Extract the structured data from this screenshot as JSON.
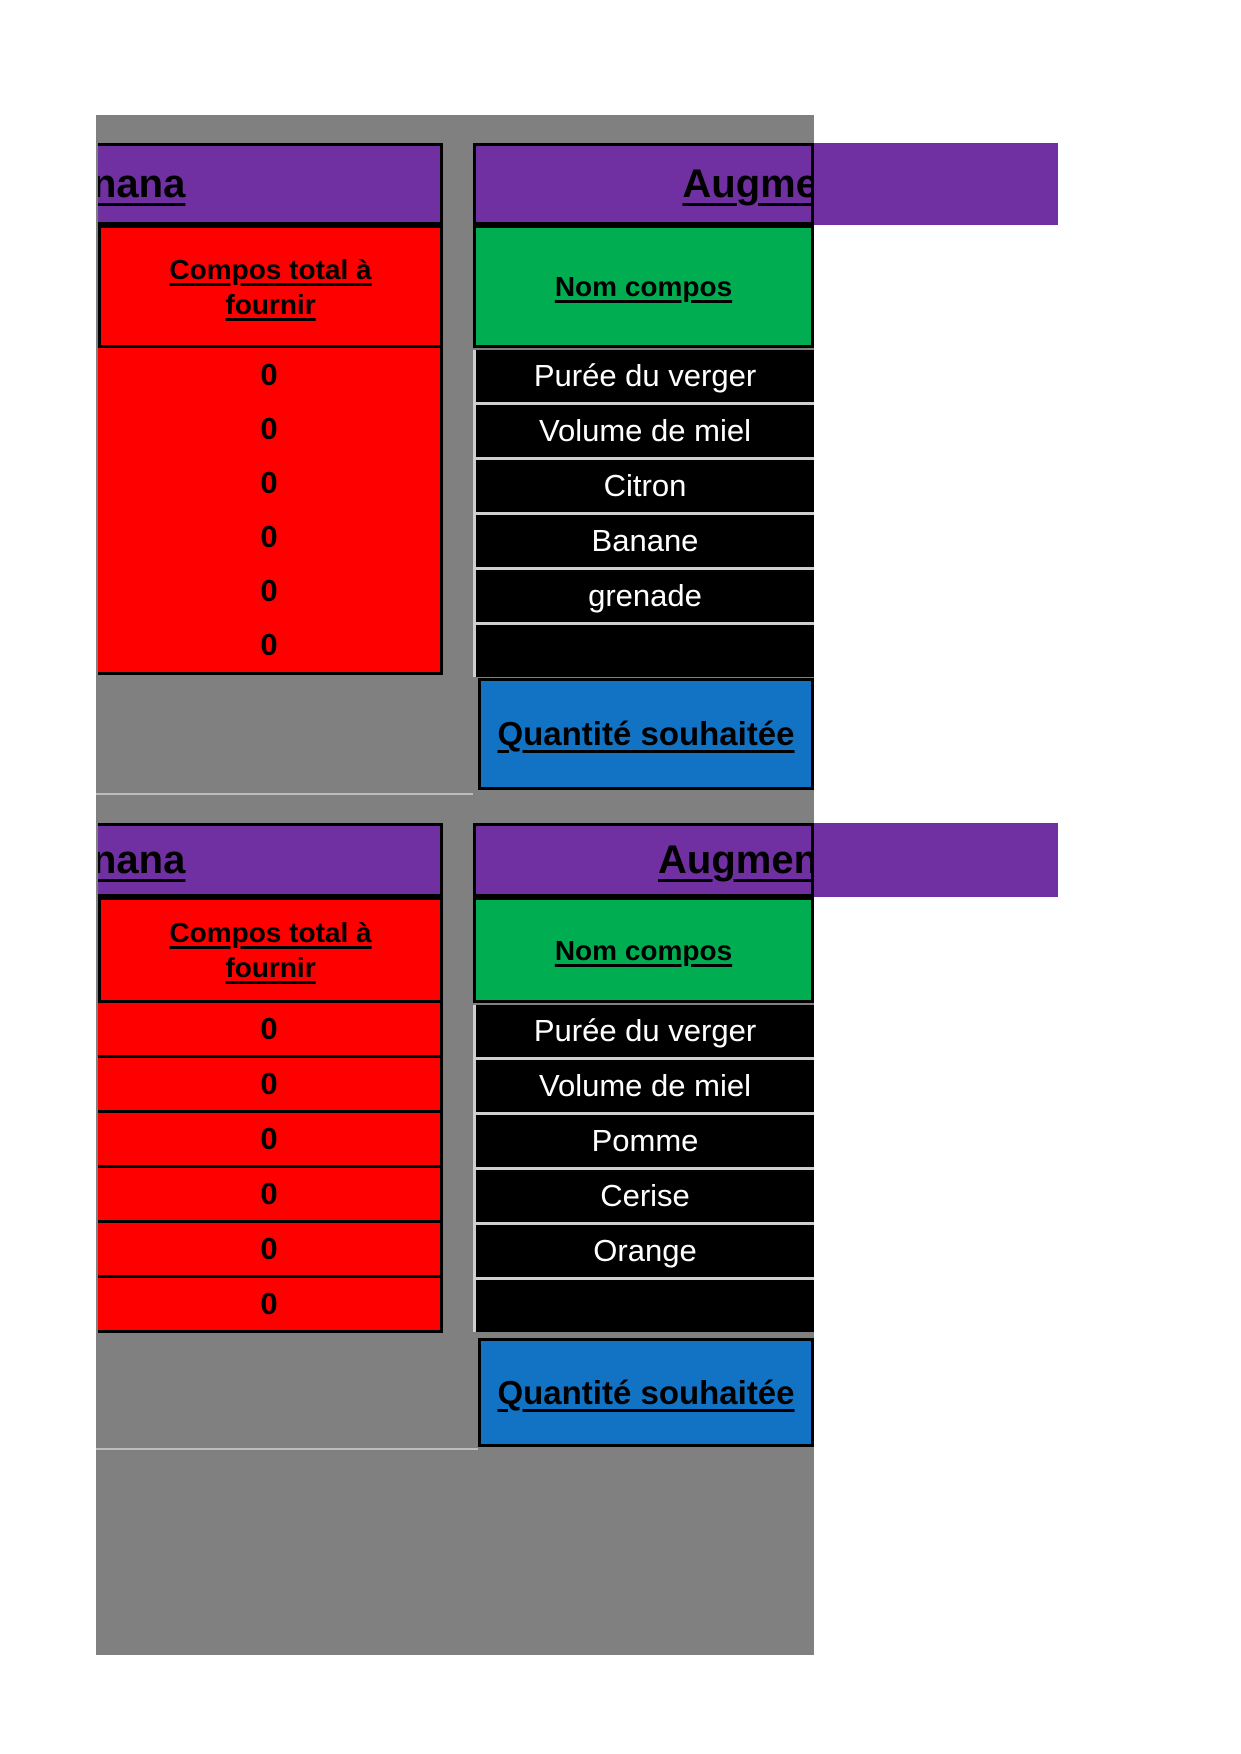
{
  "colors": {
    "sheet_gray": "#808080",
    "header_purple": "#7130a2",
    "supply_red": "#fe0000",
    "component_green": "#00ad50",
    "quantity_blue": "#1273c4",
    "row_black": "#000000"
  },
  "sections": [
    {
      "left_header": "nana",
      "right_header": "Augme",
      "supply_header": "Compos total à fournir",
      "supply_values": [
        "0",
        "0",
        "0",
        "0",
        "0",
        "0"
      ],
      "components_header": "Nom compos",
      "components": [
        "Purée du verger",
        "Volume de miel",
        "Citron",
        "Banane",
        "grenade",
        ""
      ],
      "quantity_label": "Quantité souhaitée"
    },
    {
      "left_header": "nana",
      "right_header": "Augmen",
      "supply_header": "Compos total à fournir",
      "supply_values": [
        "0",
        "0",
        "0",
        "0",
        "0",
        "0"
      ],
      "components_header": "Nom compos",
      "components": [
        "Purée du verger",
        "Volume de miel",
        "Pomme",
        "Cerise",
        "Orange",
        ""
      ],
      "quantity_label": "Quantité souhaitée"
    }
  ]
}
